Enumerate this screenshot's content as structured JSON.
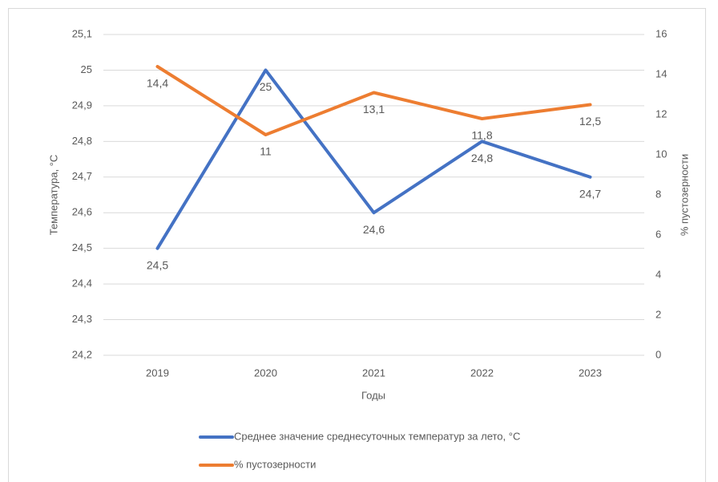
{
  "chart_data": {
    "type": "line",
    "categories": [
      "2019",
      "2020",
      "2021",
      "2022",
      "2023"
    ],
    "xlabel": "Годы",
    "ylabel": "Температура, °C",
    "y2label": "% пустозерности",
    "ylim": [
      24.2,
      25.1
    ],
    "yticks": [
      {
        "value": 24.2,
        "label": "24,2"
      },
      {
        "value": 24.3,
        "label": "24,3"
      },
      {
        "value": 24.4,
        "label": "24,4"
      },
      {
        "value": 24.5,
        "label": "24,5"
      },
      {
        "value": 24.6,
        "label": "24,6"
      },
      {
        "value": 24.7,
        "label": "24,7"
      },
      {
        "value": 24.8,
        "label": "24,8"
      },
      {
        "value": 24.9,
        "label": "24,9"
      },
      25,
      {
        "value": 25.1,
        "label": "25,1"
      }
    ],
    "y2lim": [
      0,
      16
    ],
    "y2ticks": [
      0,
      2,
      4,
      6,
      8,
      10,
      12,
      14,
      16
    ],
    "grid": true,
    "legend": "bottom",
    "series": [
      {
        "name": "Среднее значение среднесуточных температур за лето, °C",
        "color": "#4472c4",
        "values": [
          24.5,
          25,
          24.6,
          24.8,
          24.7
        ],
        "value_labels": [
          "24,5",
          "25",
          "24,6",
          "24,8",
          "24,7"
        ]
      },
      {
        "name": "% пустозерности",
        "color": "#ed7d31",
        "axis": "y2",
        "values": [
          14.4,
          11,
          13.1,
          11.8,
          12.5
        ],
        "value_labels": [
          "14,4",
          "11",
          "13,1",
          "11,8",
          "12,5"
        ]
      }
    ]
  }
}
